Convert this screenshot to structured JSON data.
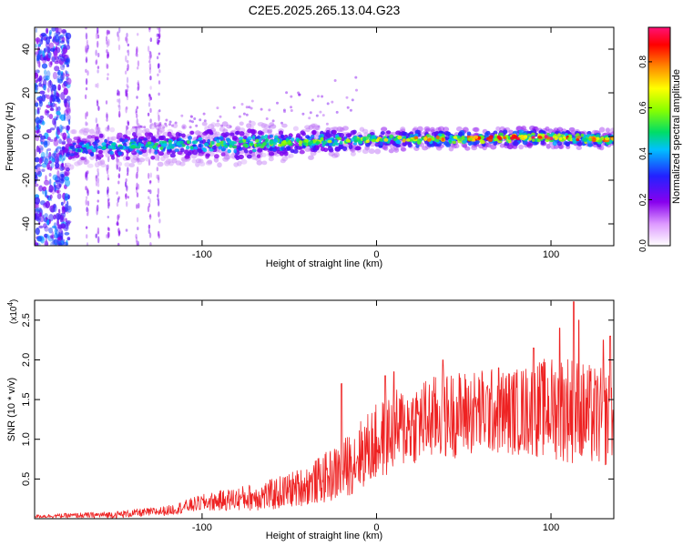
{
  "figure": {
    "title": "C2E5.2025.265.13.04.G23"
  },
  "chart_data": [
    {
      "type": "heatmap",
      "title": "C2E5.2025.265.13.04.G23",
      "xlabel": "Height of straight line (km)",
      "ylabel": "Frequency (Hz)",
      "xlim": [
        -196,
        136
      ],
      "ylim": [
        -50,
        50
      ],
      "xticks": [
        -100,
        0,
        100
      ],
      "yticks": [
        -40,
        -20,
        0,
        20,
        40
      ],
      "grid": false,
      "colorbar": {
        "label": "Normalized spectral amplitude",
        "range": [
          0.0,
          0.95
        ],
        "ticks": [
          0.0,
          0.2,
          0.4,
          0.6,
          0.8
        ],
        "colormap": [
          "#ffffff",
          "#8800ee",
          "#2222ff",
          "#00c0ff",
          "#00dd66",
          "#88ff00",
          "#ffff00",
          "#ff8800",
          "#ff0000",
          "#ff1177"
        ]
      },
      "ridge": {
        "points": [
          [
            -176,
            -5.5
          ],
          [
            -160,
            -5
          ],
          [
            -140,
            -4.5
          ],
          [
            -120,
            -4
          ],
          [
            -100,
            -3.5
          ],
          [
            -80,
            -3.5
          ],
          [
            -60,
            -3
          ],
          [
            -40,
            -2.5
          ],
          [
            -20,
            -2
          ],
          [
            0,
            -1.5
          ],
          [
            20,
            -1
          ],
          [
            40,
            -1
          ],
          [
            60,
            -1
          ],
          [
            80,
            -0.5
          ],
          [
            100,
            -0.5
          ],
          [
            120,
            -1
          ],
          [
            136,
            -1.5
          ]
        ],
        "half_width_hz": [
          [
            -176,
            4
          ],
          [
            -120,
            4
          ],
          [
            -80,
            4.5
          ],
          [
            -40,
            3.5
          ],
          [
            0,
            2.5
          ],
          [
            60,
            2
          ],
          [
            136,
            2
          ]
        ],
        "peak_amplitude": [
          [
            -176,
            0.35
          ],
          [
            -100,
            0.45
          ],
          [
            -40,
            0.5
          ],
          [
            0,
            0.6
          ],
          [
            40,
            0.75
          ],
          [
            80,
            0.85
          ],
          [
            100,
            0.9
          ],
          [
            136,
            0.7
          ]
        ]
      },
      "broadband_region_x": [
        -196,
        -176
      ],
      "vertical_streaks_x": [
        -166,
        -160,
        -154,
        -148,
        -143,
        -137,
        -130,
        -125
      ]
    },
    {
      "type": "line",
      "xlabel": "Height of straight line (km)",
      "ylabel": "SNR (10 * v/v)",
      "y_multiplier": "(x10",
      "y_multiplier_exponent": "4",
      "y_multiplier_close": ")",
      "xlim": [
        -196,
        136
      ],
      "ylim": [
        0,
        2.75
      ],
      "xticks": [
        -100,
        0,
        100
      ],
      "yticks": [
        0.5,
        1.0,
        1.5,
        2.0,
        2.5
      ],
      "grid": false,
      "series": [
        {
          "color": "#ee2222",
          "envelope": [
            [
              -196,
              0.03
            ],
            [
              -150,
              0.05
            ],
            [
              -120,
              0.1
            ],
            [
              -100,
              0.2
            ],
            [
              -80,
              0.25
            ],
            [
              -60,
              0.3
            ],
            [
              -40,
              0.42
            ],
            [
              -20,
              0.6
            ],
            [
              -10,
              0.8
            ],
            [
              0,
              0.95
            ],
            [
              10,
              1.1
            ],
            [
              20,
              1.2
            ],
            [
              40,
              1.3
            ],
            [
              60,
              1.35
            ],
            [
              80,
              1.35
            ],
            [
              100,
              1.4
            ],
            [
              110,
              1.4
            ],
            [
              120,
              1.3
            ],
            [
              136,
              1.25
            ]
          ],
          "spread": [
            [
              -196,
              0.02
            ],
            [
              -120,
              0.06
            ],
            [
              -80,
              0.15
            ],
            [
              -40,
              0.25
            ],
            [
              0,
              0.5
            ],
            [
              40,
              0.55
            ],
            [
              80,
              0.55
            ],
            [
              110,
              0.7
            ],
            [
              136,
              0.6
            ]
          ],
          "peaks": [
            [
              -20,
              1.7
            ],
            [
              5,
              1.8
            ],
            [
              10,
              1.85
            ],
            [
              38,
              2.0
            ],
            [
              70,
              1.9
            ],
            [
              90,
              2.15
            ],
            [
              105,
              2.4
            ],
            [
              113,
              2.73
            ],
            [
              116,
              2.5
            ],
            [
              130,
              2.25
            ],
            [
              134,
              2.3
            ]
          ]
        }
      ]
    }
  ]
}
